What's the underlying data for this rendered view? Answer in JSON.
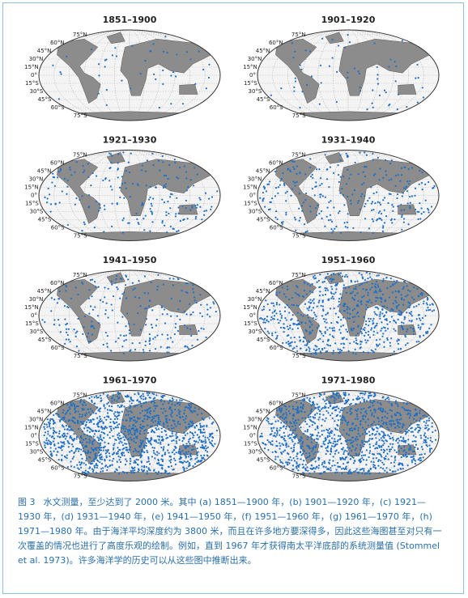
{
  "panels": [
    {
      "title": "1851–1900"
    },
    {
      "title": "1901–1920"
    },
    {
      "title": "1921–1930"
    },
    {
      "title": "1931–1940"
    },
    {
      "title": "1941–1950"
    },
    {
      "title": "1951–1960"
    },
    {
      "title": "1961–1970"
    },
    {
      "title": "1971–1980"
    }
  ],
  "lat_labels": [
    "75°N",
    "60°N",
    "45°N",
    "30°N",
    "15°N",
    "0°",
    "15°S",
    "30°S",
    "45°S",
    "60°S",
    "75°S"
  ],
  "caption": {
    "label": "图 3",
    "text": "水文测量，至少达到了 2000 米。其中 (a) 1851—1900 年，(b) 1901—1920 年，(c) 1921—1930 年，(d) 1931—1940 年，(e) 1941—1950 年，(f) 1951—1960 年，(g) 1961—1970 年，(h) 1971—1980 年。由于海洋平均深度约为 3800 米，而且在许多地方要深得多，因此这些海图甚至对只有一次覆盖的情况也进行了高度乐观的绘制。例如，直到 1967 年才获得南太平洋底部的系统测量值 (Stommel et al. 1973)。许多海洋学的历史可以从这些图中推断出来。"
  }
}
